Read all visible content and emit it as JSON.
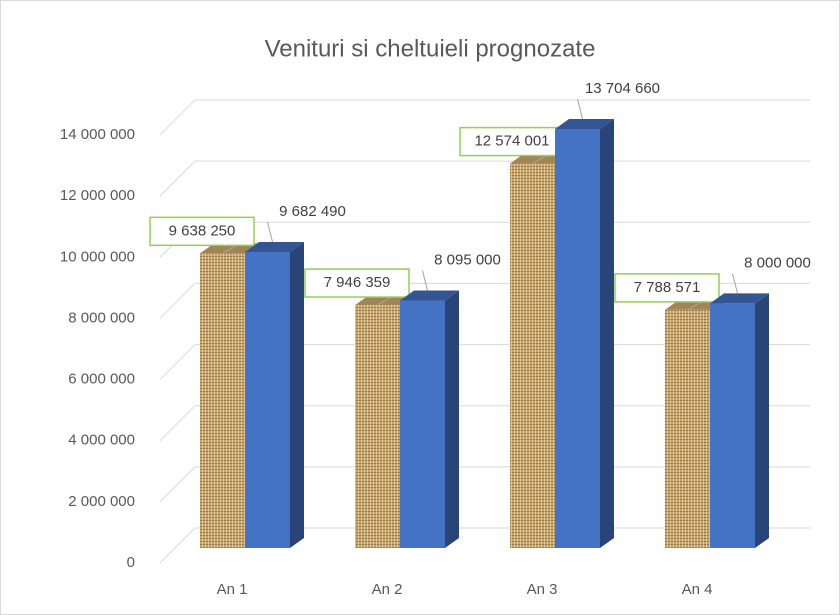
{
  "chart_data": {
    "type": "bar3d",
    "title": "Venituri si cheltuieli prognozate",
    "categories": [
      "An 1",
      "An 2",
      "An 3",
      "An 4"
    ],
    "series": [
      {
        "color": "#c9a66b",
        "values": [
          9638250,
          7946359,
          12574001,
          7788571
        ],
        "value_labels": [
          "9 638 250",
          "7 946 359",
          "12 574 001",
          "7 788 571"
        ]
      },
      {
        "color": "#4472c4",
        "values": [
          9682490,
          8095000,
          13704660,
          8000000
        ],
        "value_labels": [
          "9 682 490",
          "8 095 000",
          "13 704 660",
          "8 000 000"
        ]
      }
    ],
    "ylim": [
      0,
      14000000
    ],
    "yticks": [
      {
        "value": 0,
        "label": "0"
      },
      {
        "value": 2000000,
        "label": "2 000 000"
      },
      {
        "value": 4000000,
        "label": "4 000 000"
      },
      {
        "value": 6000000,
        "label": "6 000 000"
      },
      {
        "value": 8000000,
        "label": "8 000 000"
      },
      {
        "value": 10000000,
        "label": "10 000 000"
      },
      {
        "value": 12000000,
        "label": "12 000 000"
      },
      {
        "value": 14000000,
        "label": "14 000 000"
      }
    ],
    "grid": true
  }
}
